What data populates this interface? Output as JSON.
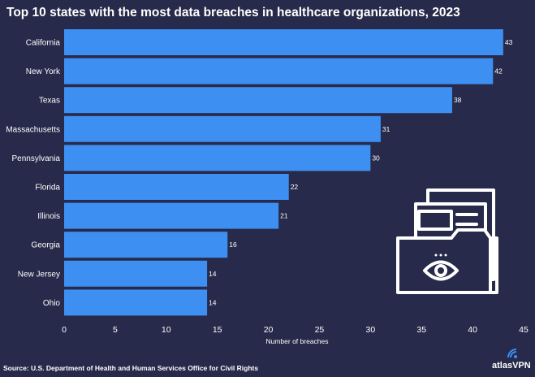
{
  "title": "Top 10 states with the most data breaches in healthcare organizations, 2023",
  "source": "Source: U.S. Department of Health and Human Services Office for Civil Rights",
  "brand": {
    "name": "atlasVPN",
    "logo_icon": "atlasvpn-logo-icon"
  },
  "illustration": {
    "icon": "folder-with-eye-icon"
  },
  "colors": {
    "background": "#272a4a",
    "bar": "#3d8ff2",
    "text": "#ffffff"
  },
  "chart_data": {
    "type": "bar",
    "orientation": "horizontal",
    "categories": [
      "California",
      "New York",
      "Texas",
      "Massachusetts",
      "Pennsylvania",
      "Florida",
      "Illinois",
      "Georgia",
      "New Jersey",
      "Ohio"
    ],
    "values": [
      43,
      42,
      38,
      31,
      30,
      22,
      21,
      16,
      14,
      14
    ],
    "xlabel": "Number of breaches",
    "ylabel": "",
    "xlim": [
      0,
      45
    ],
    "xticks": [
      0,
      5,
      10,
      15,
      20,
      25,
      30,
      35,
      40,
      45
    ],
    "grid": false,
    "data_labels": true
  }
}
